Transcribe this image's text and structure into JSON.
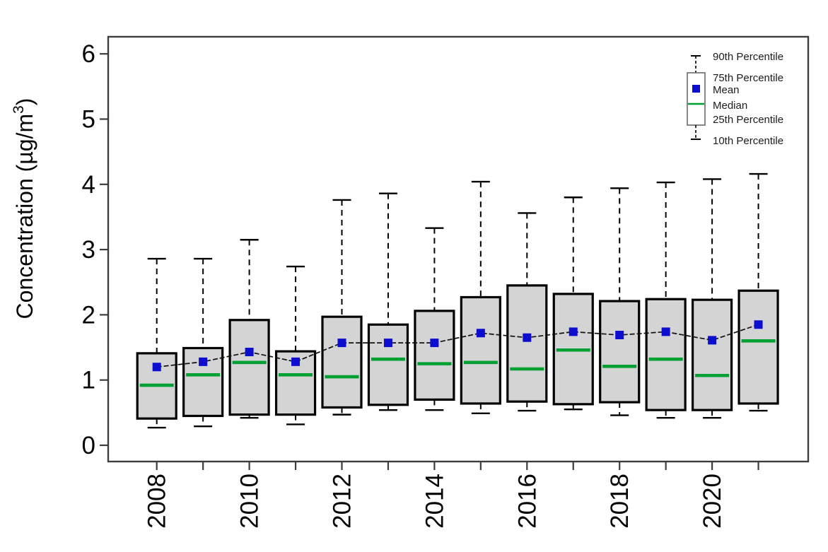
{
  "chart_data": {
    "type": "boxplot",
    "title": "",
    "xlabel": "",
    "ylabel": "Concentration (µg/m³)",
    "ylabel_parts": {
      "prefix": "Concentration (µg/m",
      "sup": "3",
      "suffix": ")"
    },
    "ylim": [
      0,
      6
    ],
    "yticks": [
      0,
      1,
      2,
      3,
      4,
      5,
      6
    ],
    "categories": [
      2008,
      2009,
      2010,
      2011,
      2012,
      2013,
      2014,
      2015,
      2016,
      2017,
      2018,
      2019,
      2020,
      2021
    ],
    "xtick_labeled_years": [
      2008,
      2010,
      2012,
      2014,
      2016,
      2018,
      2020
    ],
    "grid": false,
    "legend_position": "top-right",
    "series": [
      {
        "name": "90th Percentile",
        "values": [
          2.86,
          2.86,
          3.15,
          2.74,
          3.76,
          3.86,
          3.33,
          4.04,
          3.56,
          3.8,
          3.94,
          4.03,
          4.08,
          4.16
        ]
      },
      {
        "name": "75th Percentile",
        "values": [
          1.41,
          1.49,
          1.92,
          1.44,
          1.97,
          1.85,
          2.06,
          2.27,
          2.45,
          2.32,
          2.21,
          2.24,
          2.23,
          2.37
        ]
      },
      {
        "name": "Mean",
        "values": [
          1.2,
          1.28,
          1.43,
          1.28,
          1.57,
          1.57,
          1.57,
          1.72,
          1.65,
          1.74,
          1.69,
          1.74,
          1.61,
          1.85
        ]
      },
      {
        "name": "Median",
        "values": [
          0.92,
          1.08,
          1.27,
          1.08,
          1.05,
          1.32,
          1.25,
          1.27,
          1.17,
          1.46,
          1.21,
          1.32,
          1.07,
          1.6
        ]
      },
      {
        "name": "25th Percentile",
        "values": [
          0.41,
          0.45,
          0.47,
          0.47,
          0.58,
          0.62,
          0.7,
          0.64,
          0.67,
          0.63,
          0.66,
          0.54,
          0.54,
          0.64
        ]
      },
      {
        "name": "10th Percentile",
        "values": [
          0.27,
          0.29,
          0.42,
          0.32,
          0.47,
          0.54,
          0.54,
          0.49,
          0.53,
          0.55,
          0.46,
          0.42,
          0.42,
          0.53
        ]
      }
    ]
  },
  "legend": {
    "items": [
      {
        "label": "90th Percentile"
      },
      {
        "label": "75th Percentile"
      },
      {
        "label": "Mean"
      },
      {
        "label": "Median"
      },
      {
        "label": "25th Percentile"
      },
      {
        "label": "10th Percentile"
      }
    ]
  },
  "colors": {
    "box_fill": "#d4d4d4",
    "box_border": "#000000",
    "median_green": "#00a032",
    "mean_blue": "#0d0dd0",
    "whisker": "#000000",
    "mean_line": "#111111",
    "frame": "#3d3d3d",
    "tick_text": "#050505",
    "legend_text": "#1c1c1c",
    "legend_box_border": "#6a6a6a"
  }
}
